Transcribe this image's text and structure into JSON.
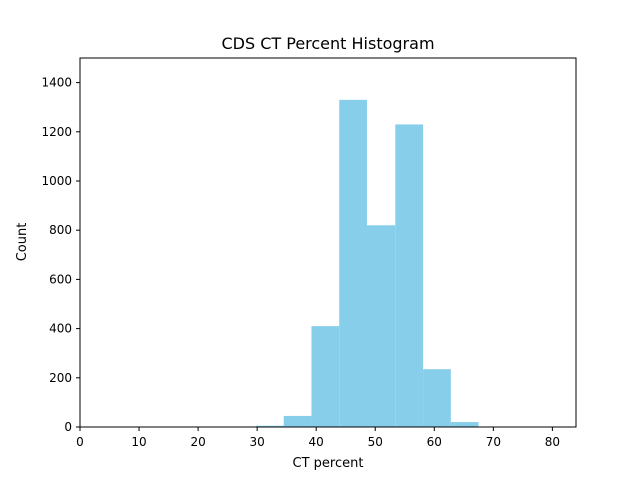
{
  "chart_data": {
    "type": "bar",
    "title": "CDS CT Percent Histogram",
    "xlabel": "CT percent",
    "ylabel": "Count",
    "xlim": [
      0,
      84
    ],
    "ylim": [
      0,
      1500
    ],
    "xticks": [
      0,
      10,
      20,
      30,
      40,
      50,
      60,
      70,
      80
    ],
    "yticks": [
      0,
      200,
      400,
      600,
      800,
      1000,
      1200,
      1400
    ],
    "bin_edges": [
      29.8,
      34.5,
      39.2,
      43.9,
      48.6,
      53.4,
      58.1,
      62.8,
      67.5
    ],
    "values": [
      5,
      45,
      410,
      1330,
      820,
      1230,
      235,
      20
    ],
    "bar_color": "#87CEEB",
    "grid": false,
    "legend": "none"
  }
}
